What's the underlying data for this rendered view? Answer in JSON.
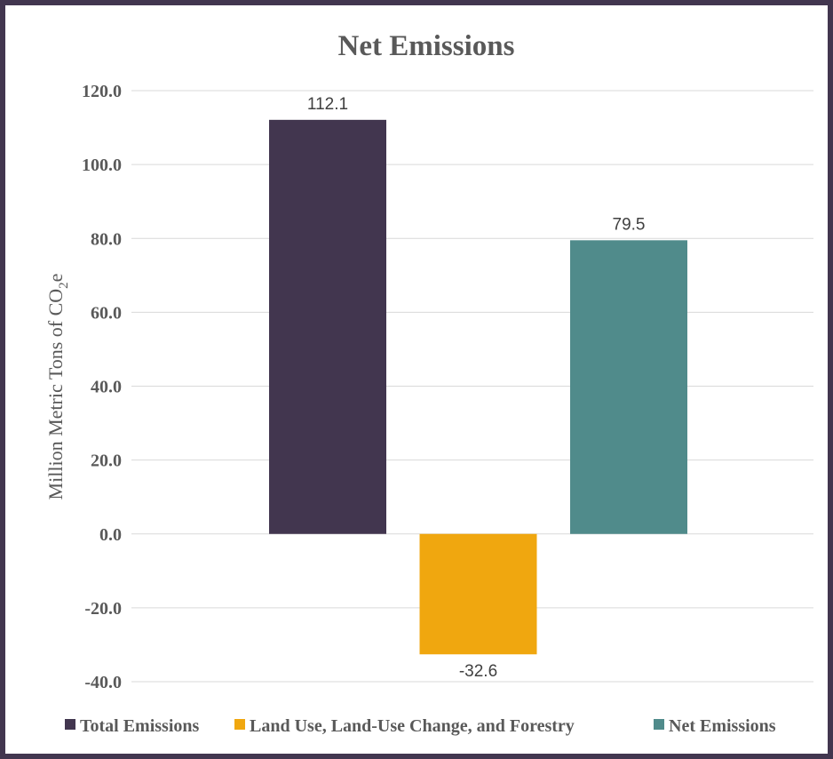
{
  "chart_data": {
    "type": "bar",
    "title": "Net Emissions",
    "ylabel_main": "Million Metric Tons of CO",
    "ylabel_sub": "2",
    "ylabel_tail": "e",
    "xlabel": "",
    "ylim": [
      -40,
      120
    ],
    "yticks": [
      120,
      100,
      80,
      60,
      40,
      20,
      0,
      -20,
      -40
    ],
    "ytick_labels": [
      "120.0",
      "100.0",
      "80.0",
      "60.0",
      "40.0",
      "20.0",
      "0.0",
      "-20.0",
      "-40.0"
    ],
    "grid": true,
    "legend_position": "bottom",
    "series": [
      {
        "name": "Total Emissions",
        "value": 112.1,
        "label": "112.1",
        "color": "#42364f"
      },
      {
        "name": "Land Use, Land-Use Change, and Forestry",
        "value": -32.6,
        "label": "-32.6",
        "color": "#f0a70f"
      },
      {
        "name": "Net Emissions",
        "value": 79.5,
        "label": "79.5",
        "color": "#508b8b"
      }
    ]
  }
}
